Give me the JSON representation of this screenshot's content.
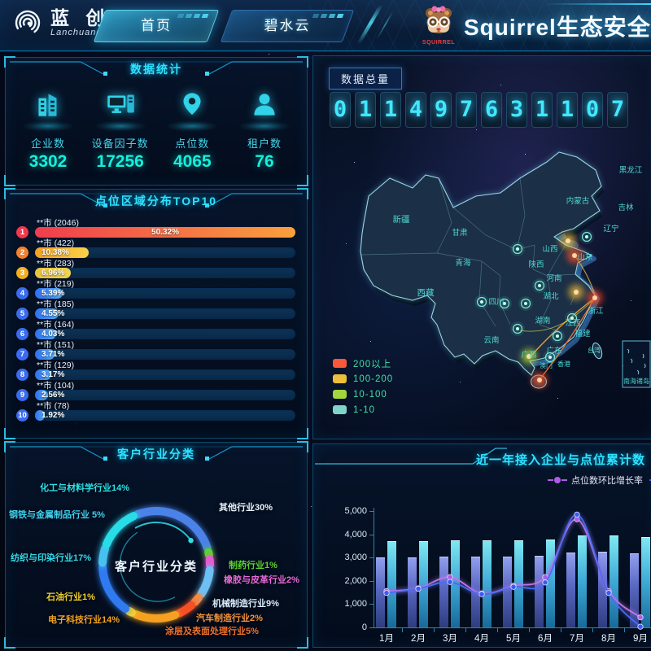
{
  "header": {
    "logo_text": "蓝 创",
    "logo_sub": "Lanchuang",
    "tabs": [
      {
        "label": "首页",
        "active": true
      },
      {
        "label": "碧水云",
        "active": false
      }
    ],
    "mascot_text": "SQUIRREL",
    "title": "Squirrel生态安全云平台"
  },
  "stats_panel": {
    "title": "数据统计",
    "items": [
      {
        "icon": "building-icon",
        "label": "企业数",
        "value": "3302"
      },
      {
        "icon": "device-icon",
        "label": "设备因子数",
        "value": "17256"
      },
      {
        "icon": "pin-icon",
        "label": "点位数",
        "value": "4065"
      },
      {
        "icon": "user-icon",
        "label": "租户数",
        "value": "76"
      }
    ]
  },
  "top10_panel": {
    "title": "点位区域分布TOP10",
    "items": [
      {
        "rank": "1",
        "label": "**市 (2046)",
        "percent": "50.32%",
        "badge": "#f0384e",
        "bar": [
          "#ef3d4e",
          "#f9a03c"
        ]
      },
      {
        "rank": "2",
        "label": "**市 (422)",
        "percent": "10.38%",
        "badge": "#f5812a",
        "bar": [
          "#f5a020",
          "#f8d34a"
        ]
      },
      {
        "rank": "3",
        "label": "**市 (283)",
        "percent": "6.96%",
        "badge": "#f2b01e",
        "bar": [
          "#e8c23c",
          "#f2d44e"
        ]
      },
      {
        "rank": "4",
        "label": "**市 (219)",
        "percent": "5.39%",
        "badge": "#3a6cf0",
        "bar": [
          "#2f6ff0",
          "#56aef5"
        ]
      },
      {
        "rank": "5",
        "label": "**市 (185)",
        "percent": "4.55%",
        "badge": "#3a6cf0",
        "bar": [
          "#2f6ff0",
          "#56aef5"
        ]
      },
      {
        "rank": "6",
        "label": "**市 (164)",
        "percent": "4.03%",
        "badge": "#3a6cf0",
        "bar": [
          "#2f6ff0",
          "#56aef5"
        ]
      },
      {
        "rank": "7",
        "label": "**市 (151)",
        "percent": "3.71%",
        "badge": "#3a6cf0",
        "bar": [
          "#2f6ff0",
          "#56aef5"
        ]
      },
      {
        "rank": "8",
        "label": "**市 (129)",
        "percent": "3.17%",
        "badge": "#3a6cf0",
        "bar": [
          "#2f6ff0",
          "#56aef5"
        ]
      },
      {
        "rank": "9",
        "label": "**市 (104)",
        "percent": "2.56%",
        "badge": "#3a6cf0",
        "bar": [
          "#2f6ff0",
          "#56aef5"
        ]
      },
      {
        "rank": "10",
        "label": "**市 (78)",
        "percent": "1.92%",
        "badge": "#3a6cf0",
        "bar": [
          "#2f6ff0",
          "#56aef5"
        ]
      }
    ]
  },
  "industry_panel": {
    "title": "客户行业分类",
    "center_label": "客户行业分类",
    "segments": [
      {
        "label": "化工与材料学行业14%",
        "value": 14,
        "color": "#28dce8",
        "label_color": "#2ce0e8"
      },
      {
        "label": "钢铁与金属制品行业 5%",
        "value": 5,
        "color": "#48c0f0",
        "label_color": "#3fd0f0"
      },
      {
        "label": "纺织与印染行业17%",
        "value": 17,
        "color": "#2f7af0",
        "label_color": "#35d8e8"
      },
      {
        "label": "石油行业1%",
        "value": 1,
        "color": "#f2d030",
        "label_color": "#f2d030"
      },
      {
        "label": "电子科技行业14%",
        "value": 14,
        "color": "#f5a020",
        "label_color": "#f5a423"
      },
      {
        "label": "涂层及表面处理行业5%",
        "value": 5,
        "color": "#f55024",
        "label_color": "#f2712c"
      },
      {
        "label": "汽车制造行业2%",
        "value": 2,
        "color": "#f08a4a",
        "label_color": "#f5953f"
      },
      {
        "label": "机械制造行业9%",
        "value": 9,
        "color": "#6cc0f5",
        "label_color": "#d8ecff"
      },
      {
        "label": "橡胶与皮革行业2%",
        "value": 2,
        "color": "#e85ad0",
        "label_color": "#e86ad8"
      },
      {
        "label": "制药行业1%",
        "value": 1,
        "color": "#58d42c",
        "label_color": "#5ad431"
      },
      {
        "label": "其他行业30%",
        "value": 30,
        "color": "#4a82e8",
        "label_color": "#e8f2ff"
      }
    ]
  },
  "map_panel": {
    "counter_label": "数据总量",
    "digits": [
      "0",
      "1",
      "1",
      "4",
      "9",
      "7",
      "6",
      "3",
      "1",
      "1",
      "0",
      "7"
    ],
    "legend": [
      {
        "label": "200以上",
        "color": "#f8593a"
      },
      {
        "label": "100-200",
        "color": "#edbe3a"
      },
      {
        "label": "10-100",
        "color": "#a3d53e"
      },
      {
        "label": "1-10",
        "color": "#7fd4c8"
      }
    ],
    "provinces": [
      "新疆",
      "甘肃",
      "青海",
      "西藏",
      "云南",
      "四川",
      "内蒙古",
      "黑龙江",
      "吉林",
      "辽宁",
      "山西",
      "陕西",
      "河南",
      "湖北",
      "湖南",
      "江西",
      "浙江",
      "福建",
      "台湾",
      "广东",
      "广西",
      "香港",
      "澳门",
      "山东",
      "南海诸岛"
    ]
  },
  "trend_panel": {
    "title": "近一年接入企业与点位累计数",
    "legend": [
      {
        "label": "点位数环比增长率",
        "color": "#b05ce8"
      },
      {
        "label": "",
        "color": "#3a5cf0"
      }
    ]
  },
  "chart_data": [
    {
      "type": "bar",
      "orientation": "horizontal",
      "title": "点位区域分布TOP10",
      "categories": [
        "**市",
        "**市",
        "**市",
        "**市",
        "**市",
        "**市",
        "**市",
        "**市",
        "**市",
        "**市"
      ],
      "values": [
        2046,
        422,
        283,
        219,
        185,
        164,
        151,
        129,
        104,
        78
      ],
      "percent_labels": [
        "50.32%",
        "10.38%",
        "6.96%",
        "5.39%",
        "4.55%",
        "4.03%",
        "3.71%",
        "3.17%",
        "2.56%",
        "1.92%"
      ]
    },
    {
      "type": "pie",
      "title": "客户行业分类",
      "labels": [
        "化工与材料学行业",
        "钢铁与金属制品行业",
        "纺织与印染行业",
        "石油行业",
        "电子科技行业",
        "涂层及表面处理行业",
        "汽车制造行业",
        "机械制造行业",
        "橡胶与皮革行业",
        "制药行业",
        "其他行业"
      ],
      "values": [
        14,
        5,
        17,
        1,
        14,
        5,
        2,
        9,
        2,
        1,
        30
      ]
    },
    {
      "type": "combo",
      "title": "近一年接入企业与点位累计数",
      "categories": [
        "1月",
        "2月",
        "3月",
        "4月",
        "5月",
        "6月",
        "7月",
        "8月",
        "9月"
      ],
      "series": [
        {
          "name": "",
          "type": "bar",
          "values": [
            3000,
            3020,
            3050,
            3050,
            3060,
            3080,
            3230,
            3240,
            3180
          ]
        },
        {
          "name": "",
          "type": "bar",
          "values": [
            3700,
            3720,
            3760,
            3750,
            3750,
            3790,
            3950,
            3970,
            3900
          ]
        },
        {
          "name": "点位数环比增长率",
          "type": "line",
          "values": [
            1560,
            1680,
            2160,
            1460,
            1790,
            2160,
            4650,
            1560,
            430
          ]
        },
        {
          "name": "",
          "type": "line",
          "values": [
            1480,
            1660,
            1950,
            1430,
            1740,
            1930,
            4850,
            1480,
            30
          ]
        }
      ],
      "ylim": [
        0,
        5000
      ],
      "yticks": [
        "0",
        "1,000",
        "2,000",
        "3,000",
        "4,000",
        "5,000"
      ],
      "legend_position": "top-right",
      "grid": false
    }
  ]
}
